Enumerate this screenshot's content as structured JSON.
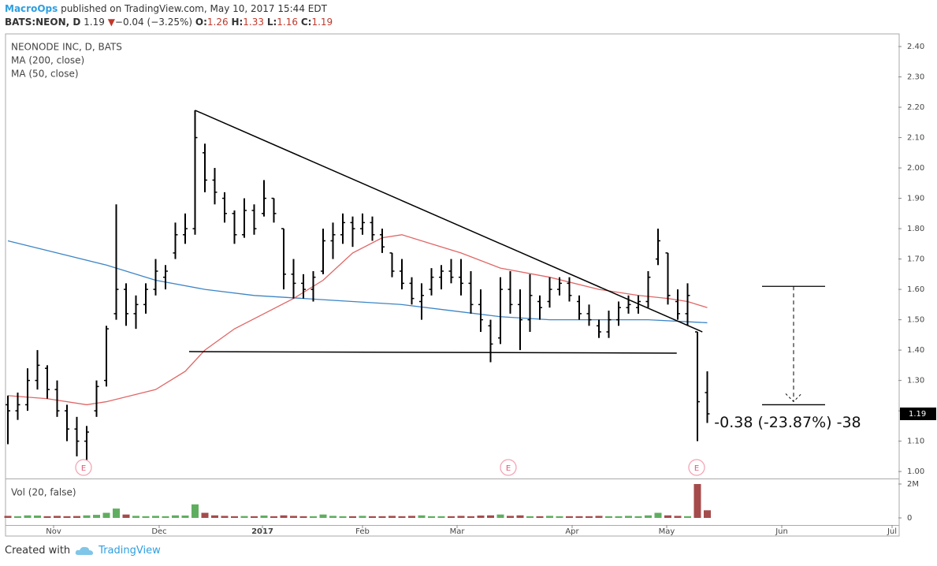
{
  "header": {
    "author": "MacroOps",
    "published": "published on TradingView.com, May 10, 2017 15:44 EDT",
    "symbol": "BATS:NEON, D",
    "last": "1.19",
    "arrow": "▼",
    "change": "−0.04 (−3.25%)",
    "o_label": "O:",
    "o": "1.26",
    "h_label": "H:",
    "h": "1.33",
    "l_label": "L:",
    "l": "1.16",
    "c_label": "C:",
    "c": "1.19"
  },
  "footer": {
    "created": "Created with",
    "brand": "TradingView"
  },
  "chart_data": {
    "type": "ohlc",
    "title": "NEONODE INC, D, BATS",
    "bar_color": "#000000",
    "ohlc": [
      [
        1.22,
        1.25,
        1.09,
        1.2
      ],
      [
        1.2,
        1.26,
        1.17,
        1.22
      ],
      [
        1.22,
        1.34,
        1.2,
        1.3
      ],
      [
        1.3,
        1.4,
        1.27,
        1.35
      ],
      [
        1.34,
        1.35,
        1.24,
        1.27
      ],
      [
        1.27,
        1.3,
        1.18,
        1.2
      ],
      [
        1.2,
        1.22,
        1.1,
        1.14
      ],
      [
        1.14,
        1.18,
        1.05,
        1.1
      ],
      [
        1.1,
        1.15,
        1.01,
        1.13
      ],
      [
        1.2,
        1.3,
        1.18,
        1.28
      ],
      [
        1.3,
        1.48,
        1.28,
        1.47
      ],
      [
        1.52,
        1.88,
        1.5,
        1.6
      ],
      [
        1.6,
        1.62,
        1.48,
        1.52
      ],
      [
        1.52,
        1.58,
        1.47,
        1.55
      ],
      [
        1.55,
        1.62,
        1.52,
        1.6
      ],
      [
        1.6,
        1.7,
        1.58,
        1.66
      ],
      [
        1.64,
        1.68,
        1.6,
        1.66
      ],
      [
        1.72,
        1.82,
        1.7,
        1.78
      ],
      [
        1.78,
        1.85,
        1.75,
        1.8
      ],
      [
        1.8,
        2.19,
        1.78,
        2.1
      ],
      [
        2.05,
        2.08,
        1.92,
        1.96
      ],
      [
        1.96,
        2.0,
        1.88,
        1.92
      ],
      [
        1.9,
        1.92,
        1.82,
        1.85
      ],
      [
        1.85,
        1.86,
        1.75,
        1.78
      ],
      [
        1.78,
        1.9,
        1.77,
        1.86
      ],
      [
        1.86,
        1.88,
        1.78,
        1.8
      ],
      [
        1.85,
        1.96,
        1.84,
        1.9
      ],
      [
        1.9,
        1.9,
        1.82,
        1.85
      ],
      [
        1.8,
        1.8,
        1.6,
        1.65
      ],
      [
        1.65,
        1.7,
        1.57,
        1.62
      ],
      [
        1.62,
        1.65,
        1.57,
        1.6
      ],
      [
        1.6,
        1.66,
        1.56,
        1.64
      ],
      [
        1.66,
        1.8,
        1.65,
        1.76
      ],
      [
        1.76,
        1.82,
        1.7,
        1.78
      ],
      [
        1.78,
        1.85,
        1.75,
        1.82
      ],
      [
        1.82,
        1.84,
        1.74,
        1.8
      ],
      [
        1.8,
        1.85,
        1.78,
        1.82
      ],
      [
        1.82,
        1.84,
        1.76,
        1.78
      ],
      [
        1.78,
        1.8,
        1.72,
        1.74
      ],
      [
        1.72,
        1.72,
        1.64,
        1.66
      ],
      [
        1.66,
        1.7,
        1.6,
        1.62
      ],
      [
        1.62,
        1.64,
        1.55,
        1.57
      ],
      [
        1.56,
        1.62,
        1.5,
        1.58
      ],
      [
        1.6,
        1.67,
        1.58,
        1.64
      ],
      [
        1.64,
        1.68,
        1.6,
        1.66
      ],
      [
        1.66,
        1.7,
        1.62,
        1.64
      ],
      [
        1.64,
        1.7,
        1.58,
        1.62
      ],
      [
        1.62,
        1.66,
        1.52,
        1.55
      ],
      [
        1.55,
        1.6,
        1.46,
        1.5
      ],
      [
        1.48,
        1.5,
        1.36,
        1.42
      ],
      [
        1.44,
        1.64,
        1.42,
        1.6
      ],
      [
        1.6,
        1.66,
        1.52,
        1.55
      ],
      [
        1.55,
        1.6,
        1.4,
        1.5
      ],
      [
        1.5,
        1.65,
        1.46,
        1.58
      ],
      [
        1.56,
        1.58,
        1.5,
        1.54
      ],
      [
        1.56,
        1.64,
        1.54,
        1.6
      ],
      [
        1.6,
        1.64,
        1.58,
        1.62
      ],
      [
        1.62,
        1.64,
        1.56,
        1.58
      ],
      [
        1.56,
        1.58,
        1.5,
        1.52
      ],
      [
        1.52,
        1.55,
        1.48,
        1.5
      ],
      [
        1.48,
        1.5,
        1.44,
        1.46
      ],
      [
        1.46,
        1.53,
        1.44,
        1.5
      ],
      [
        1.5,
        1.56,
        1.48,
        1.54
      ],
      [
        1.54,
        1.58,
        1.52,
        1.55
      ],
      [
        1.54,
        1.58,
        1.52,
        1.56
      ],
      [
        1.56,
        1.66,
        1.54,
        1.64
      ],
      [
        1.7,
        1.8,
        1.68,
        1.76
      ],
      [
        1.72,
        1.72,
        1.55,
        1.58
      ],
      [
        1.56,
        1.6,
        1.5,
        1.52
      ],
      [
        1.52,
        1.62,
        1.48,
        1.58
      ],
      [
        1.46,
        1.46,
        1.1,
        1.23
      ],
      [
        1.26,
        1.33,
        1.16,
        1.19
      ]
    ],
    "series": [
      {
        "name": "MA (200, close)",
        "color": "#3d85c6",
        "x": [
          0,
          5,
          10,
          15,
          20,
          25,
          30,
          35,
          40,
          45,
          50,
          55,
          60,
          65,
          71
        ],
        "values": [
          1.76,
          1.72,
          1.68,
          1.63,
          1.6,
          1.58,
          1.57,
          1.56,
          1.55,
          1.53,
          1.51,
          1.5,
          1.5,
          1.5,
          1.49
        ]
      },
      {
        "name": "MA (50, close)",
        "color": "#e06666",
        "x": [
          0,
          4,
          8,
          10,
          15,
          18,
          20,
          23,
          26,
          29,
          32,
          35,
          38,
          40,
          43,
          46,
          50,
          55,
          60,
          64,
          67,
          69,
          71
        ],
        "values": [
          1.25,
          1.24,
          1.22,
          1.23,
          1.27,
          1.33,
          1.4,
          1.47,
          1.52,
          1.57,
          1.63,
          1.72,
          1.77,
          1.78,
          1.75,
          1.72,
          1.67,
          1.64,
          1.6,
          1.58,
          1.57,
          1.56,
          1.54
        ]
      }
    ],
    "volume": {
      "name": "Vol (20, false)",
      "up_color": "#5fae5f",
      "down_color": "#a54b4b",
      "values": [
        0.12,
        0.1,
        0.15,
        0.14,
        0.1,
        0.12,
        0.1,
        0.11,
        0.15,
        0.18,
        0.3,
        0.55,
        0.2,
        0.12,
        0.1,
        0.12,
        0.1,
        0.15,
        0.14,
        0.8,
        0.3,
        0.15,
        0.12,
        0.1,
        0.11,
        0.1,
        0.14,
        0.1,
        0.15,
        0.12,
        0.1,
        0.1,
        0.2,
        0.12,
        0.1,
        0.1,
        0.12,
        0.1,
        0.1,
        0.12,
        0.1,
        0.12,
        0.15,
        0.1,
        0.1,
        0.1,
        0.12,
        0.1,
        0.14,
        0.15,
        0.2,
        0.12,
        0.15,
        0.1,
        0.1,
        0.12,
        0.1,
        0.1,
        0.1,
        0.1,
        0.12,
        0.1,
        0.1,
        0.12,
        0.1,
        0.15,
        0.3,
        0.15,
        0.12,
        0.1,
        2.0,
        0.45
      ],
      "vlim": [
        -0.42,
        2.28
      ],
      "vticks": [
        0,
        {
          "value": 2,
          "label": "2M"
        }
      ]
    },
    "xlim": [
      -0.16,
      90.4
    ],
    "xticks": [
      {
        "value": 4.64,
        "label": "Nov"
      },
      {
        "value": 15.36,
        "label": "Dec"
      },
      {
        "value": 25.84,
        "label": "2017"
      },
      {
        "value": 36,
        "label": "Feb"
      },
      {
        "value": 45.6,
        "label": "Mar"
      },
      {
        "value": 57.28,
        "label": "Apr"
      },
      {
        "value": 66.88,
        "label": "May"
      },
      {
        "value": 78.56,
        "label": "Jun"
      },
      {
        "value": 89.76,
        "label": "Jul"
      }
    ],
    "ylim": [
      0.977,
      2.439
    ],
    "yticks": [
      {
        "value": 1,
        "label": "1.00"
      },
      {
        "value": 1.1,
        "label": "1.10"
      },
      {
        "value": 1.2,
        "label": "1.20"
      },
      {
        "value": 1.3,
        "label": "1.30"
      },
      {
        "value": 1.4,
        "label": "1.40"
      },
      {
        "value": 1.5,
        "label": "1.50"
      },
      {
        "value": 1.6,
        "label": "1.60"
      },
      {
        "value": 1.7,
        "label": "1.70"
      },
      {
        "value": 1.8,
        "label": "1.80"
      },
      {
        "value": 1.9,
        "label": "1.90"
      },
      {
        "value": 2,
        "label": "2.00"
      },
      {
        "value": 2.1,
        "label": "2.10"
      },
      {
        "value": 2.2,
        "label": "2.20"
      },
      {
        "value": 2.3,
        "label": "2.30"
      },
      {
        "value": 2.4,
        "label": "2.40"
      }
    ],
    "trendlines": [
      {
        "x": [
          19,
          70.5
        ],
        "y": [
          2.19,
          1.46
        ]
      },
      {
        "x": [
          18.4,
          67.9
        ],
        "y": [
          1.395,
          1.39
        ]
      }
    ],
    "measure": {
      "x": 79.76,
      "from": 1.61,
      "to": 1.22,
      "label": "-0.38 (-23.87%) -38",
      "label_x": 71.7,
      "label_y": 1.16
    },
    "earnings": {
      "label": "E",
      "x": [
        7.68,
        50.8,
        69.92
      ]
    }
  }
}
